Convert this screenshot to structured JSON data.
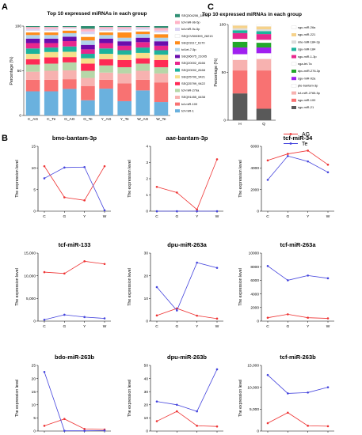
{
  "panels": {
    "a": "A",
    "b": "B",
    "c": "C"
  },
  "panel_a": {
    "title": "Top 10 expressed miRNAs in each group",
    "ylabel": "Percentage (%)",
    "yticks": [
      "0",
      "50",
      "100"
    ],
    "categories": [
      "C_AG",
      "C_Te",
      "G_AG",
      "G_Te",
      "Y_AG",
      "Y_Te",
      "W_AG",
      "W_Te"
    ],
    "legend": [
      {
        "label": "SEQ304206_18791",
        "color": "#2f8f73"
      },
      {
        "label": "tcf-miR-9b-5p",
        "color": "#ffb3c6"
      },
      {
        "label": "tcf-miR-9c-5p",
        "color": "#d9d2f2"
      },
      {
        "label": "SEQCV500399_28213",
        "color": "#ffffff"
      },
      {
        "label": "SEQ23117_6170",
        "color": "#ff8c1a"
      },
      {
        "label": "tcf-let-7-5p",
        "color": "#b0d4ec"
      },
      {
        "label": "SEQ96075_21005",
        "color": "#6a0dad"
      },
      {
        "label": "SEQ20002_8166",
        "color": "#e8278d"
      },
      {
        "label": "SEQ20002_8168",
        "color": "#1db39c"
      },
      {
        "label": "SEQ25799_9421",
        "color": "#f6e08a"
      },
      {
        "label": "SEQ25799_9422",
        "color": "#ff2a55"
      },
      {
        "label": "tcf-miR-279a",
        "color": "#b6d7a8"
      },
      {
        "label": "SEQ91455_6438",
        "color": "#f7b2b0"
      },
      {
        "label": "tcf-miR-100",
        "color": "#f87272"
      },
      {
        "label": "tcf-miR-1",
        "color": "#6ab1de"
      }
    ]
  },
  "panel_c": {
    "title": "Top 10 expressed miRNAs in each group",
    "ylabel": "Percentage (%)",
    "yticks": [
      "0",
      "50",
      "100"
    ],
    "categories": [
      "H",
      "Q"
    ],
    "legend": [
      {
        "label": "sgu-miR-26a",
        "color": "#ffffff"
      },
      {
        "label": "sgu-miR-221",
        "color": "#f6d28a"
      },
      {
        "label": "mle-miR-184-3p",
        "color": "#dcdcdc"
      },
      {
        "label": "sgu-miR-184",
        "color": "#1db39c"
      },
      {
        "label": "sgu-miR-1-3p",
        "color": "#e8278d"
      },
      {
        "label": "nga-let-7a",
        "color": "#ffffff"
      },
      {
        "label": "dpu-miR-276-3p",
        "color": "#22a82a"
      },
      {
        "label": "sgu-miR-92a",
        "color": "#a020f0"
      },
      {
        "label": "pte-bantam-3p",
        "color": "#ffffff"
      },
      {
        "label": "tcf-miR-2765-5p",
        "color": "#f7b2b0"
      },
      {
        "label": "sgu-miR-100",
        "color": "#f87272"
      },
      {
        "label": "sgu-miR-21",
        "color": "#595959"
      }
    ]
  },
  "panel_b": {
    "ylabel": "The expression level",
    "legend": [
      {
        "label": "AG",
        "color": "#ee3333"
      },
      {
        "label": "Te",
        "color": "#4444dd"
      }
    ]
  },
  "chart_data": [
    {
      "type": "bar",
      "stacked": true,
      "percent": true,
      "title": "Top 10 expressed miRNAs in each group",
      "xlabel": "",
      "ylabel": "Percentage (%)",
      "ylim": [
        0,
        100
      ],
      "categories": [
        "C_AG",
        "C_Te",
        "G_AG",
        "G_Te",
        "Y_AG",
        "Y_Te",
        "W_AG",
        "W_Te"
      ],
      "series": [
        {
          "name": "tcf-miR-1",
          "color": "#6ab1de",
          "values": [
            27,
            27,
            30,
            17,
            30,
            16,
            28,
            15
          ]
        },
        {
          "name": "tcf-miR-100",
          "color": "#f87272",
          "values": [
            13,
            13,
            11,
            16,
            10,
            20,
            12,
            22
          ]
        },
        {
          "name": "SEQ91455_6438",
          "color": "#f7b2b0",
          "values": [
            9,
            10,
            10,
            9,
            8,
            11,
            10,
            10
          ]
        },
        {
          "name": "tcf-miR-279a",
          "color": "#b6d7a8",
          "values": [
            8,
            8,
            9,
            8,
            8,
            7,
            8,
            7
          ]
        },
        {
          "name": "SEQ25799_9422",
          "color": "#ff2a55",
          "values": [
            6,
            7,
            6,
            8,
            7,
            8,
            6,
            8
          ]
        },
        {
          "name": "SEQ25799_9421",
          "color": "#f6e08a",
          "values": [
            6,
            6,
            6,
            6,
            6,
            6,
            6,
            6
          ]
        },
        {
          "name": "SEQ20002_8168",
          "color": "#1db39c",
          "values": [
            6,
            5,
            6,
            5,
            6,
            5,
            6,
            5
          ]
        },
        {
          "name": "SEQ20002_8166",
          "color": "#e8278d",
          "values": [
            6,
            5,
            6,
            5,
            6,
            5,
            6,
            5
          ]
        },
        {
          "name": "SEQ96075_21005",
          "color": "#6a0dad",
          "values": [
            5,
            5,
            5,
            5,
            5,
            5,
            5,
            5
          ]
        },
        {
          "name": "tcf-let-7-5p",
          "color": "#b0d4ec",
          "values": [
            4,
            4,
            4,
            5,
            4,
            4,
            4,
            4
          ]
        },
        {
          "name": "SEQ23117_6170",
          "color": "#ff8c1a",
          "values": [
            3,
            3,
            3,
            4,
            3,
            6,
            3,
            4
          ]
        },
        {
          "name": "SEQCV500399_28213",
          "color": "#ffffff",
          "values": [
            2,
            2,
            2,
            3,
            2,
            2,
            2,
            2
          ]
        },
        {
          "name": "tcf-miR-9c-5p",
          "color": "#d9d2f2",
          "values": [
            2,
            2,
            1,
            3,
            2,
            2,
            2,
            2
          ]
        },
        {
          "name": "tcf-miR-9b-5p",
          "color": "#ffb3c6",
          "values": [
            2,
            2,
            1,
            3,
            2,
            2,
            1,
            3
          ]
        },
        {
          "name": "SEQ304206_18791",
          "color": "#2f8f73",
          "values": [
            1,
            1,
            1,
            3,
            1,
            1,
            1,
            2
          ]
        }
      ]
    },
    {
      "type": "bar",
      "stacked": true,
      "percent": true,
      "title": "Top 10 expressed miRNAs in each group",
      "xlabel": "",
      "ylabel": "Percentage (%)",
      "ylim": [
        0,
        100
      ],
      "categories": [
        "H",
        "Q"
      ],
      "series": [
        {
          "name": "sgu-miR-21",
          "color": "#595959",
          "values": [
            28,
            12
          ]
        },
        {
          "name": "sgu-miR-100",
          "color": "#f87272",
          "values": [
            24,
            40
          ]
        },
        {
          "name": "tcf-miR-2765-5p",
          "color": "#f7b2b0",
          "values": [
            11,
            12
          ]
        },
        {
          "name": "pte-bantam-3p",
          "color": "#ffffff",
          "values": [
            6,
            6
          ]
        },
        {
          "name": "sgu-miR-92a",
          "color": "#a020f0",
          "values": [
            7,
            6
          ]
        },
        {
          "name": "dpu-miR-276-3p",
          "color": "#22a82a",
          "values": [
            6,
            5
          ]
        },
        {
          "name": "nga-let-7a",
          "color": "#ffffff",
          "values": [
            3,
            3
          ]
        },
        {
          "name": "sgu-miR-1-3p",
          "color": "#e8278d",
          "values": [
            6,
            6
          ]
        },
        {
          "name": "sgu-miR-184",
          "color": "#1db39c",
          "values": [
            3,
            3
          ]
        },
        {
          "name": "mle-miR-184-3p",
          "color": "#dcdcdc",
          "values": [
            2,
            2
          ]
        },
        {
          "name": "sgu-miR-221",
          "color": "#f6d28a",
          "values": [
            3,
            3
          ]
        },
        {
          "name": "sgu-miR-26a",
          "color": "#ffffff",
          "values": [
            1,
            2
          ]
        }
      ]
    },
    {
      "type": "line",
      "title": "bmo-bantam-3p",
      "ylabel": "The expression level",
      "categories": [
        "C",
        "G",
        "Y",
        "W"
      ],
      "ylim": [
        0,
        15
      ],
      "yticks": [
        0,
        5,
        10,
        15
      ],
      "series": [
        {
          "name": "AG",
          "color": "#ee3333",
          "values": [
            10.4,
            3.2,
            2.5,
            10.4
          ]
        },
        {
          "name": "Te",
          "color": "#4444dd",
          "values": [
            7.6,
            10.1,
            10.2,
            0.2
          ]
        }
      ]
    },
    {
      "type": "line",
      "title": "aae-bantam-3p",
      "ylabel": "The expression level",
      "categories": [
        "C",
        "G",
        "Y",
        "W"
      ],
      "ylim": [
        0,
        4
      ],
      "yticks": [
        0,
        1,
        2,
        3,
        4
      ],
      "series": [
        {
          "name": "AG",
          "color": "#ee3333",
          "values": [
            1.5,
            1.15,
            0.1,
            3.2
          ]
        },
        {
          "name": "Te",
          "color": "#4444dd",
          "values": [
            0,
            0,
            0,
            0
          ]
        }
      ]
    },
    {
      "type": "line",
      "title": "tcf-miR-34",
      "ylabel": "The expression level",
      "categories": [
        "C",
        "G",
        "Y",
        "W"
      ],
      "ylim": [
        0,
        6000
      ],
      "yticks": [
        0,
        2000,
        4000,
        6000
      ],
      "ytick_labels": [
        "0",
        "2000",
        "4000",
        "6000"
      ],
      "series": [
        {
          "name": "AG",
          "color": "#ee3333",
          "values": [
            4700,
            5300,
            5600,
            4300
          ]
        },
        {
          "name": "Te",
          "color": "#4444dd",
          "values": [
            2900,
            5100,
            4600,
            3600
          ]
        }
      ]
    },
    {
      "type": "line",
      "title": "tcf-miR-133",
      "ylabel": "The expression level",
      "categories": [
        "C",
        "G",
        "Y",
        "W"
      ],
      "ylim": [
        0,
        15000
      ],
      "yticks": [
        0,
        5000,
        10000,
        15000
      ],
      "ytick_labels": [
        "0",
        "5,000",
        "10,000",
        "15,000"
      ],
      "series": [
        {
          "name": "AG",
          "color": "#ee3333",
          "values": [
            10800,
            10500,
            13200,
            12600
          ]
        },
        {
          "name": "Te",
          "color": "#4444dd",
          "values": [
            300,
            1400,
            900,
            600
          ]
        }
      ]
    },
    {
      "type": "line",
      "title": "dpu-miR-263a",
      "ylabel": "The expression level",
      "categories": [
        "C",
        "G",
        "Y",
        "W"
      ],
      "ylim": [
        0,
        30
      ],
      "yticks": [
        0,
        10,
        20,
        30
      ],
      "series": [
        {
          "name": "AG",
          "color": "#ee3333",
          "values": [
            2.5,
            5.6,
            2.4,
            1.1
          ]
        },
        {
          "name": "Te",
          "color": "#4444dd",
          "values": [
            15,
            4.7,
            25.8,
            23.5
          ]
        }
      ]
    },
    {
      "type": "line",
      "title": "tcf-miR-263a",
      "ylabel": "The expression level",
      "categories": [
        "C",
        "G",
        "Y",
        "W"
      ],
      "ylim": [
        0,
        10000
      ],
      "yticks": [
        0,
        2000,
        4000,
        6000,
        8000,
        10000
      ],
      "ytick_labels": [
        "0",
        "2000",
        "4000",
        "6000",
        "8000",
        "10000"
      ],
      "series": [
        {
          "name": "AG",
          "color": "#ee3333",
          "values": [
            500,
            1000,
            500,
            400
          ]
        },
        {
          "name": "Te",
          "color": "#4444dd",
          "values": [
            8100,
            6000,
            6700,
            6300
          ]
        }
      ]
    },
    {
      "type": "line",
      "title": "bdo-miR-263b",
      "ylabel": "The expression level",
      "categories": [
        "C",
        "G",
        "Y",
        "W"
      ],
      "ylim": [
        0,
        25
      ],
      "yticks": [
        0,
        5,
        10,
        15,
        20,
        25
      ],
      "series": [
        {
          "name": "AG",
          "color": "#ee3333",
          "values": [
            2,
            4.6,
            0.8,
            0.6
          ]
        },
        {
          "name": "Te",
          "color": "#4444dd",
          "values": [
            22.5,
            0.1,
            0.1,
            0.2
          ]
        }
      ]
    },
    {
      "type": "line",
      "title": "dpu-miR-263b",
      "ylabel": "The expression level",
      "categories": [
        "C",
        "G",
        "Y",
        "W"
      ],
      "ylim": [
        0,
        50
      ],
      "yticks": [
        0,
        10,
        20,
        30,
        40,
        50
      ],
      "series": [
        {
          "name": "AG",
          "color": "#ee3333",
          "values": [
            7.5,
            15,
            4,
            3.5
          ]
        },
        {
          "name": "Te",
          "color": "#4444dd",
          "values": [
            22.5,
            20,
            15,
            47
          ]
        }
      ]
    },
    {
      "type": "line",
      "title": "tcf-miR-263b",
      "ylabel": "The expression level",
      "categories": [
        "C",
        "G",
        "Y",
        "W"
      ],
      "ylim": [
        0,
        15000
      ],
      "yticks": [
        0,
        5000,
        10000,
        15000
      ],
      "ytick_labels": [
        "0",
        "5,000",
        "10,000",
        "15,000"
      ],
      "series": [
        {
          "name": "AG",
          "color": "#ee3333",
          "values": [
            1800,
            4200,
            1200,
            1100
          ]
        },
        {
          "name": "Te",
          "color": "#4444dd",
          "values": [
            12800,
            8600,
            8800,
            10000
          ]
        }
      ]
    }
  ]
}
